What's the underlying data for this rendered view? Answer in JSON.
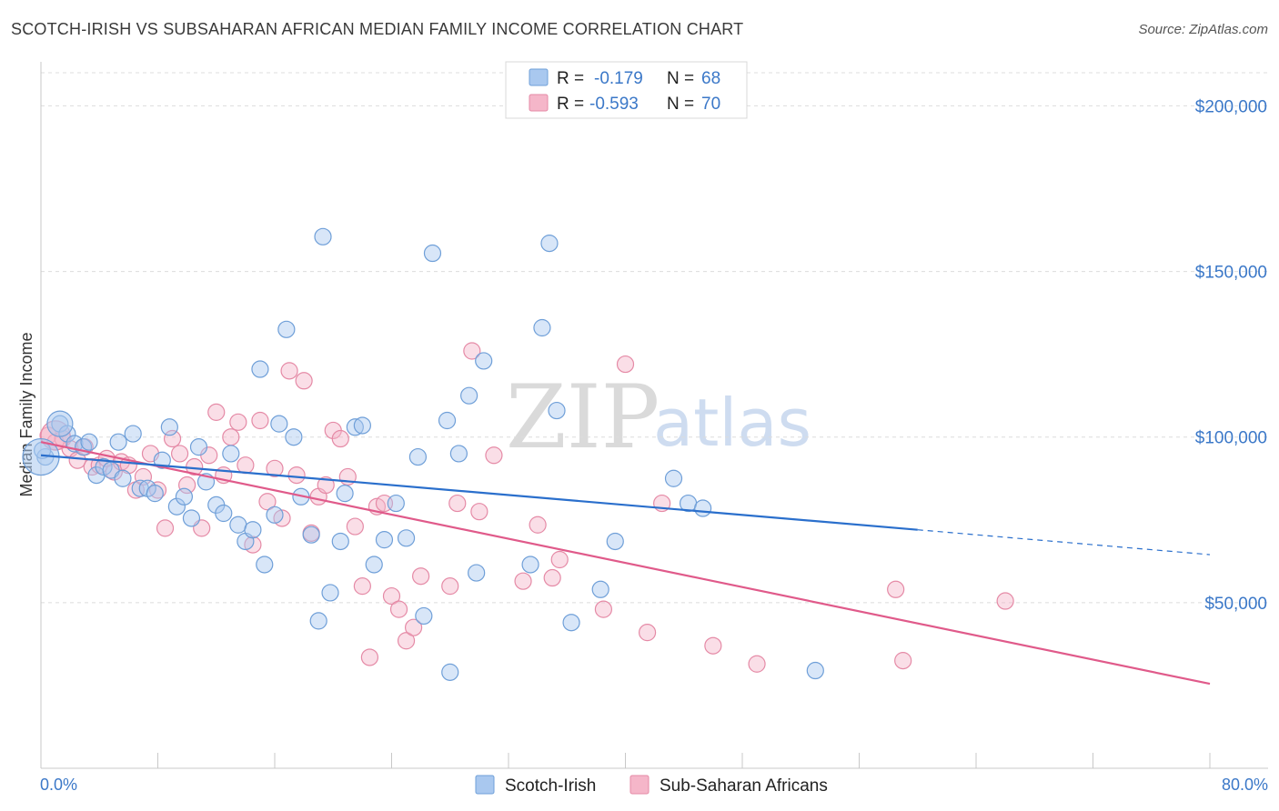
{
  "header": {
    "title": "SCOTCH-IRISH VS SUBSAHARAN AFRICAN MEDIAN FAMILY INCOME CORRELATION CHART",
    "source": "Source: ZipAtlas.com"
  },
  "watermark": {
    "zip": "ZIP",
    "atlas": "atlas"
  },
  "legend": {
    "rows": [
      {
        "r_label": "R =",
        "r_value": "-0.179",
        "n_label": "N =",
        "n_value": "68",
        "color": "#a9c8ef"
      },
      {
        "r_label": "R =",
        "r_value": "-0.593",
        "n_label": "N =",
        "n_value": "70",
        "color": "#f5b6c9"
      }
    ]
  },
  "bottom_legend": [
    {
      "label": "Scotch-Irish",
      "color": "#a9c8ef"
    },
    {
      "label": "Sub-Saharan Africans",
      "color": "#f5b6c9"
    }
  ],
  "chart_data": {
    "type": "scatter",
    "title": "SCOTCH-IRISH VS SUBSAHARAN AFRICAN MEDIAN FAMILY INCOME CORRELATION CHART",
    "xlabel": "",
    "ylabel": "Median Family Income",
    "xlim": [
      0,
      80
    ],
    "ylim": [
      0,
      210000
    ],
    "x_tick_labels": [
      "0.0%",
      "80.0%"
    ],
    "y_ticks": [
      50000,
      100000,
      150000,
      200000
    ],
    "y_tick_labels": [
      "$50,000",
      "$100,000",
      "$150,000",
      "$200,000"
    ],
    "grid": "horizontal dashed",
    "legend_position": "top-center",
    "series": [
      {
        "name": "Scotch-Irish",
        "color": "#a9c8ef",
        "stroke": "#6f9fd8",
        "line_color": "#2a6fcc",
        "trend": {
          "x0": 0,
          "y0": 94500,
          "x1": 60,
          "y1": 72000,
          "x_dash_end": 80,
          "y_dash_end": 64500
        },
        "points": [
          [
            0.3,
            94000
          ],
          [
            1.3,
            104000
          ],
          [
            1.8,
            101000
          ],
          [
            2.3,
            98000
          ],
          [
            2.9,
            97000
          ],
          [
            3.3,
            98500
          ],
          [
            3.8,
            88500
          ],
          [
            4.3,
            91000
          ],
          [
            4.8,
            90000
          ],
          [
            5.3,
            98500
          ],
          [
            5.6,
            87500
          ],
          [
            6.3,
            101000
          ],
          [
            6.8,
            84500
          ],
          [
            7.3,
            84500
          ],
          [
            7.8,
            83000
          ],
          [
            8.3,
            93000
          ],
          [
            8.8,
            103000
          ],
          [
            9.3,
            79000
          ],
          [
            9.8,
            82000
          ],
          [
            10.3,
            75500
          ],
          [
            10.8,
            97000
          ],
          [
            11.3,
            86500
          ],
          [
            12.0,
            79500
          ],
          [
            12.5,
            77000
          ],
          [
            13.0,
            95000
          ],
          [
            13.5,
            73500
          ],
          [
            14.0,
            68500
          ],
          [
            14.5,
            72000
          ],
          [
            15.0,
            120500
          ],
          [
            15.3,
            61500
          ],
          [
            16.0,
            76500
          ],
          [
            16.3,
            104000
          ],
          [
            16.8,
            132500
          ],
          [
            17.3,
            100000
          ],
          [
            17.8,
            82000
          ],
          [
            18.5,
            70500
          ],
          [
            19.0,
            44500
          ],
          [
            19.3,
            160500
          ],
          [
            19.8,
            53000
          ],
          [
            20.5,
            68500
          ],
          [
            20.8,
            83000
          ],
          [
            21.5,
            103000
          ],
          [
            22.0,
            103500
          ],
          [
            22.8,
            61500
          ],
          [
            23.5,
            69000
          ],
          [
            24.3,
            80000
          ],
          [
            25.0,
            69500
          ],
          [
            25.8,
            94000
          ],
          [
            26.2,
            46000
          ],
          [
            26.8,
            155500
          ],
          [
            27.8,
            105000
          ],
          [
            28.0,
            29000
          ],
          [
            28.6,
            95000
          ],
          [
            29.3,
            112500
          ],
          [
            29.8,
            59000
          ],
          [
            30.3,
            123000
          ],
          [
            33.5,
            61500
          ],
          [
            34.3,
            133000
          ],
          [
            34.8,
            158500
          ],
          [
            35.3,
            108000
          ],
          [
            36.3,
            44000
          ],
          [
            38.3,
            54000
          ],
          [
            39.3,
            68500
          ],
          [
            43.3,
            87500
          ],
          [
            44.3,
            80000
          ],
          [
            45.3,
            78500
          ],
          [
            53.0,
            29500
          ],
          [
            0.1,
            96000
          ]
        ],
        "large_points": [
          [
            0.0,
            94000,
            20
          ],
          [
            1.3,
            104000,
            14
          ]
        ]
      },
      {
        "name": "Sub-Saharan Africans",
        "color": "#f5b6c9",
        "stroke": "#e58aa6",
        "line_color": "#e05a8a",
        "trend": {
          "x0": 0,
          "y0": 98500,
          "x1": 80,
          "y1": 25500
        },
        "points": [
          [
            0.5,
            100500
          ],
          [
            1.0,
            98500
          ],
          [
            1.5,
            99500
          ],
          [
            2.0,
            96500
          ],
          [
            2.5,
            93000
          ],
          [
            3.0,
            97000
          ],
          [
            3.5,
            91000
          ],
          [
            4.0,
            91500
          ],
          [
            4.5,
            93500
          ],
          [
            5.0,
            89500
          ],
          [
            5.5,
            92500
          ],
          [
            6.0,
            91500
          ],
          [
            6.5,
            84000
          ],
          [
            7.0,
            88000
          ],
          [
            7.5,
            95000
          ],
          [
            8.0,
            84000
          ],
          [
            8.5,
            72500
          ],
          [
            9.0,
            99500
          ],
          [
            9.5,
            95000
          ],
          [
            10.0,
            85500
          ],
          [
            10.5,
            91000
          ],
          [
            11.0,
            72500
          ],
          [
            11.5,
            94500
          ],
          [
            12.0,
            107500
          ],
          [
            12.5,
            88500
          ],
          [
            13.0,
            100000
          ],
          [
            13.5,
            104500
          ],
          [
            14.0,
            91500
          ],
          [
            14.5,
            67500
          ],
          [
            15.0,
            105000
          ],
          [
            15.5,
            80500
          ],
          [
            16.0,
            90500
          ],
          [
            16.5,
            75500
          ],
          [
            17.0,
            120000
          ],
          [
            17.5,
            88500
          ],
          [
            18.0,
            117000
          ],
          [
            18.5,
            71000
          ],
          [
            19.0,
            82000
          ],
          [
            19.5,
            85500
          ],
          [
            20.0,
            102000
          ],
          [
            20.5,
            99500
          ],
          [
            21.0,
            88000
          ],
          [
            21.5,
            73000
          ],
          [
            22.0,
            55000
          ],
          [
            22.5,
            33500
          ],
          [
            23.0,
            79000
          ],
          [
            23.5,
            80000
          ],
          [
            24.0,
            52000
          ],
          [
            24.5,
            48000
          ],
          [
            25.0,
            38500
          ],
          [
            25.5,
            42500
          ],
          [
            26.0,
            58000
          ],
          [
            28.0,
            55000
          ],
          [
            28.5,
            80000
          ],
          [
            29.5,
            126000
          ],
          [
            30.0,
            77500
          ],
          [
            31.0,
            94500
          ],
          [
            33.0,
            56500
          ],
          [
            34.0,
            73500
          ],
          [
            35.0,
            57500
          ],
          [
            35.5,
            63000
          ],
          [
            38.5,
            48000
          ],
          [
            40.0,
            122000
          ],
          [
            41.5,
            41000
          ],
          [
            42.5,
            80000
          ],
          [
            46.0,
            37000
          ],
          [
            49.0,
            31500
          ],
          [
            58.5,
            54000
          ],
          [
            59.0,
            32500
          ],
          [
            66.0,
            50500
          ]
        ],
        "large_points": [
          [
            1.0,
            100500,
            16
          ]
        ]
      }
    ]
  }
}
